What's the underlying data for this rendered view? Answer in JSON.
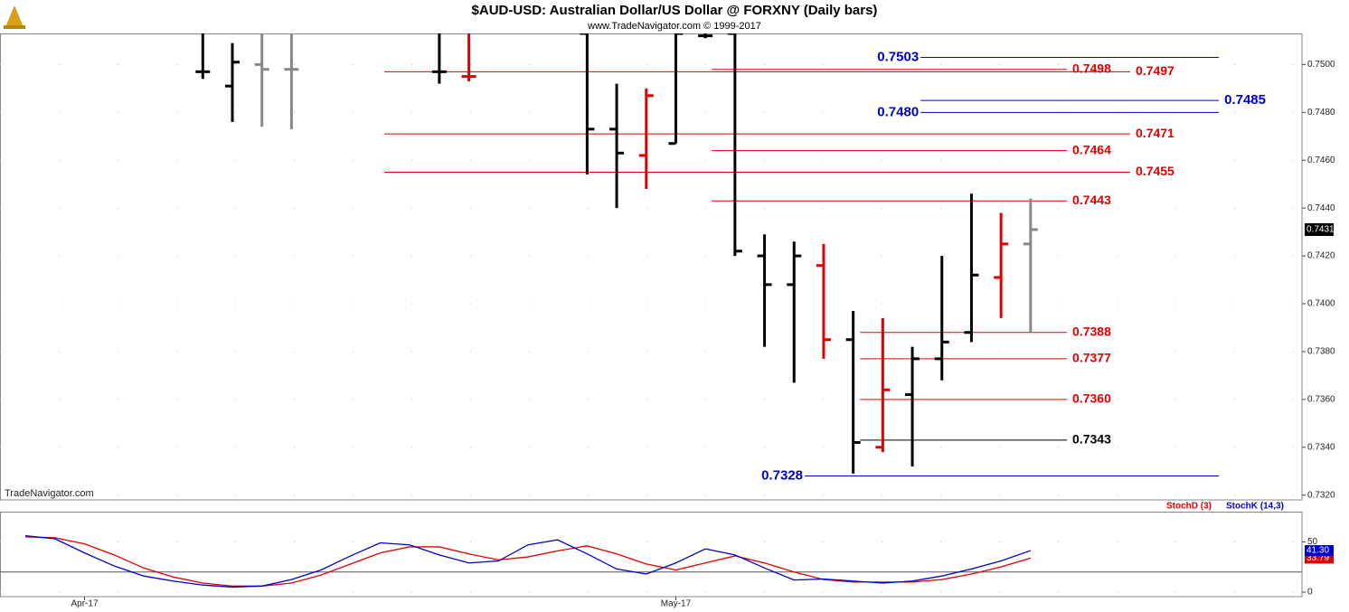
{
  "title": "$AUD-USD:  Australian Dollar/US Dollar @ FORXNY  (Daily bars)",
  "subtitle": "www.TradeNavigator.com © 1999-2017",
  "watermark": "TradeNavigator.com",
  "chart_data": [
    {
      "type": "ohlc",
      "x": [
        6,
        7,
        8,
        9,
        14,
        15,
        19,
        20,
        21,
        22,
        23,
        24,
        25,
        26,
        27,
        28,
        29,
        30,
        31,
        32,
        33,
        34
      ],
      "open": [
        0.7497,
        0.7491,
        0.75,
        0.7498,
        0.7497,
        0.7495,
        0.7513,
        0.7473,
        0.7462,
        0.7467,
        0.7512,
        0.7513,
        0.742,
        0.7408,
        0.7416,
        0.7385,
        0.734,
        0.7362,
        0.7377,
        0.7388,
        0.7411,
        0.7425
      ],
      "high": [
        0.7513,
        0.7509,
        0.7513,
        0.7513,
        0.7513,
        0.7513,
        0.7513,
        0.7492,
        0.749,
        0.7513,
        0.7513,
        0.7513,
        0.7429,
        0.7426,
        0.7425,
        0.7397,
        0.7394,
        0.7382,
        0.742,
        0.7446,
        0.7438,
        0.7444
      ],
      "low": [
        0.7494,
        0.7476,
        0.7474,
        0.7473,
        0.7492,
        0.7493,
        0.7454,
        0.744,
        0.7448,
        0.7467,
        0.7511,
        0.742,
        0.7382,
        0.7367,
        0.7377,
        0.7329,
        0.7338,
        0.7332,
        0.7368,
        0.7384,
        0.7394,
        0.7388
      ],
      "close": [
        0.7497,
        0.7501,
        0.7498,
        0.7498,
        0.7497,
        0.7495,
        0.7473,
        0.7463,
        0.7487,
        0.7513,
        0.7512,
        0.7422,
        0.7408,
        0.742,
        0.7385,
        0.7342,
        0.7364,
        0.7377,
        0.7384,
        0.7412,
        0.7425,
        0.7431
      ],
      "colors": [
        "#000000",
        "#000000",
        "#888888",
        "#888888",
        "#000000",
        "#e00000",
        "#000000",
        "#000000",
        "#e00000",
        "#000000",
        "#000000",
        "#000000",
        "#000000",
        "#000000",
        "#e00000",
        "#000000",
        "#e00000",
        "#000000",
        "#000000",
        "#000000",
        "#e00000",
        "#888888"
      ],
      "xlim": [
        -0.86,
        43.18
      ],
      "ylim": [
        0.7318,
        0.7513
      ],
      "yticks": [
        {
          "value": 0.732,
          "label": "0.7320"
        },
        {
          "value": 0.734,
          "label": "0.7340"
        },
        {
          "value": 0.736,
          "label": "0.7360"
        },
        {
          "value": 0.738,
          "label": "0.7380"
        },
        {
          "value": 0.74,
          "label": "0.7400"
        },
        {
          "value": 0.742,
          "label": "0.7420"
        },
        {
          "value": 0.744,
          "label": "0.7440"
        },
        {
          "value": 0.746,
          "label": "0.7460"
        },
        {
          "value": 0.748,
          "label": "0.7480"
        },
        {
          "value": 0.75,
          "label": "0.7500"
        }
      ],
      "last_value": {
        "value": 0.7431,
        "label": "0.7431"
      },
      "grid": true,
      "annotations": [
        {
          "value": 0.7503,
          "label": "0.7503",
          "color": "#0000cc",
          "from": 30.28,
          "to": 40.37,
          "side": "left"
        },
        {
          "value": 0.7498,
          "label": "0.7498",
          "color": "#e00000",
          "from": 23.21,
          "to": 35.23,
          "side": "right"
        },
        {
          "value": 0.7497,
          "label": "0.7497",
          "color": "#e00000",
          "from": 12.14,
          "to": 37.37,
          "side": "right"
        },
        {
          "value": 0.7485,
          "label": "0.7485",
          "color": "#0000cc",
          "from": 30.28,
          "to": 40.37,
          "side": "right"
        },
        {
          "value": 0.748,
          "label": "0.7480",
          "color": "#0000cc",
          "from": 30.28,
          "to": 40.37,
          "side": "left"
        },
        {
          "value": 0.7471,
          "label": "0.7471",
          "color": "#e00000",
          "from": 12.14,
          "to": 37.37,
          "side": "right"
        },
        {
          "value": 0.7464,
          "label": "0.7464",
          "color": "#e00000",
          "from": 23.21,
          "to": 35.23,
          "side": "right"
        },
        {
          "value": 0.7455,
          "label": "0.7455",
          "color": "#e00000",
          "from": 12.14,
          "to": 37.37,
          "side": "right"
        },
        {
          "value": 0.7443,
          "label": "0.7443",
          "color": "#e00000",
          "from": 23.21,
          "to": 35.23,
          "side": "right"
        },
        {
          "value": 0.7388,
          "label": "0.7388",
          "color": "#e00000",
          "from": 28.23,
          "to": 35.23,
          "side": "right"
        },
        {
          "value": 0.7377,
          "label": "0.7377",
          "color": "#e00000",
          "from": 28.23,
          "to": 35.23,
          "side": "right"
        },
        {
          "value": 0.736,
          "label": "0.7360",
          "color": "#e00000",
          "from": 28.23,
          "to": 35.23,
          "side": "right"
        },
        {
          "value": 0.7343,
          "label": "0.7343",
          "color": "#000000",
          "from": 28.23,
          "to": 35.23,
          "side": "right"
        },
        {
          "value": 0.7328,
          "label": "0.7328",
          "color": "#0000cc",
          "from": 26.36,
          "to": 40.37,
          "side": "left"
        }
      ]
    },
    {
      "type": "line",
      "x": [
        0,
        1,
        2,
        3,
        4,
        5,
        6,
        7,
        8,
        9,
        10,
        11,
        12,
        13,
        14,
        15,
        16,
        17,
        18,
        19,
        20,
        21,
        22,
        23,
        24,
        25,
        26,
        27,
        28,
        29,
        30,
        31,
        32,
        33,
        34
      ],
      "series": [
        {
          "name": "StochD (3)",
          "color": "#e00000",
          "values": [
            55,
            54,
            48,
            37,
            24,
            15,
            9,
            6,
            6,
            9,
            17,
            28,
            39,
            45,
            45,
            38,
            32,
            35,
            41,
            46,
            38,
            28,
            22,
            29,
            36,
            29,
            20,
            12.5,
            10,
            10,
            10,
            12.5,
            18,
            25,
            33.79
          ],
          "last_label": "33.79"
        },
        {
          "name": "StochK (14,3)",
          "color": "#0000cc",
          "values": [
            56,
            53,
            39,
            26,
            16,
            11,
            7,
            5,
            6,
            12.5,
            22,
            36,
            49,
            47,
            37,
            29,
            31,
            47,
            52,
            38,
            23,
            18,
            29,
            43,
            37,
            24,
            12,
            13,
            11,
            9,
            11,
            16,
            23,
            31,
            41.3
          ],
          "last_label": "41.30"
        }
      ],
      "xlim": [
        -0.86,
        43.18
      ],
      "ylim": [
        -4.5,
        80
      ],
      "yticks": [
        0,
        50
      ],
      "reference_lines": [
        20
      ],
      "xticks": [
        {
          "value": 2,
          "label": "Apr-17"
        },
        {
          "value": 22,
          "label": "May-17"
        }
      ],
      "grid": true
    }
  ]
}
